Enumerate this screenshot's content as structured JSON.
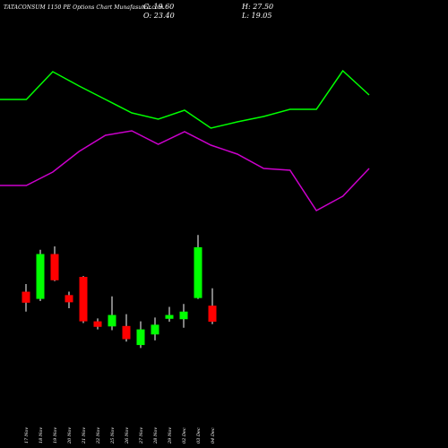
{
  "header": {
    "title": "TATACONSUM 1150  PE Options  Chart Munafasutra.com",
    "close": "C: 19.60",
    "open": "O: 23.40",
    "high": "H: 27.50",
    "low": "L: 19.05"
  },
  "colors": {
    "background": "#000000",
    "bullish": "#00ff00",
    "bearish": "#ff0000",
    "wick": "#ffffff",
    "line_upper": "#00ff00",
    "line_lower": "#cc00cc"
  },
  "chart_data": {
    "type": "candlestick",
    "categories": [
      "17 Nov",
      "18 Nov",
      "19 Nov",
      "20 Nov",
      "21 Nov",
      "22 Nov",
      "25 Nov",
      "26 Nov",
      "27 Nov",
      "28 Nov",
      "29 Nov",
      "02 Dec",
      "03 Dec",
      "04 Dec"
    ],
    "candles": [
      {
        "o": 26.7,
        "h": 28.5,
        "l": 22.0,
        "c": 24.1
      },
      {
        "o": 25.0,
        "h": 36.6,
        "l": 24.5,
        "c": 35.6
      },
      {
        "o": 35.6,
        "h": 37.4,
        "l": 29.2,
        "c": 29.4
      },
      {
        "o": 25.9,
        "h": 26.7,
        "l": 22.8,
        "c": 24.2
      },
      {
        "o": 30.2,
        "h": 30.4,
        "l": 19.3,
        "c": 19.7
      },
      {
        "o": 19.7,
        "h": 20.4,
        "l": 17.8,
        "c": 18.4
      },
      {
        "o": 18.5,
        "h": 25.6,
        "l": 17.6,
        "c": 21.2
      },
      {
        "o": 18.6,
        "h": 21.4,
        "l": 14.9,
        "c": 15.5
      },
      {
        "o": 14.1,
        "h": 19.7,
        "l": 13.4,
        "c": 17.8
      },
      {
        "o": 16.6,
        "h": 20.6,
        "l": 15.2,
        "c": 18.9
      },
      {
        "o": 20.3,
        "h": 23.1,
        "l": 19.6,
        "c": 21.2
      },
      {
        "o": 20.2,
        "h": 23.8,
        "l": 18.2,
        "c": 22.0
      },
      {
        "o": 25.2,
        "h": 40.1,
        "l": 25.0,
        "c": 37.2
      },
      {
        "o": 23.4,
        "h": 27.5,
        "l": 19.05,
        "c": 19.6
      }
    ],
    "upper_line": [
      111,
      111,
      80,
      96,
      111,
      126,
      133,
      123,
      143,
      136,
      130,
      122,
      122,
      79,
      106
    ],
    "lower_line": [
      207,
      207,
      192,
      169,
      151,
      146,
      161,
      147,
      162,
      172,
      188,
      190,
      235,
      219,
      188
    ]
  }
}
